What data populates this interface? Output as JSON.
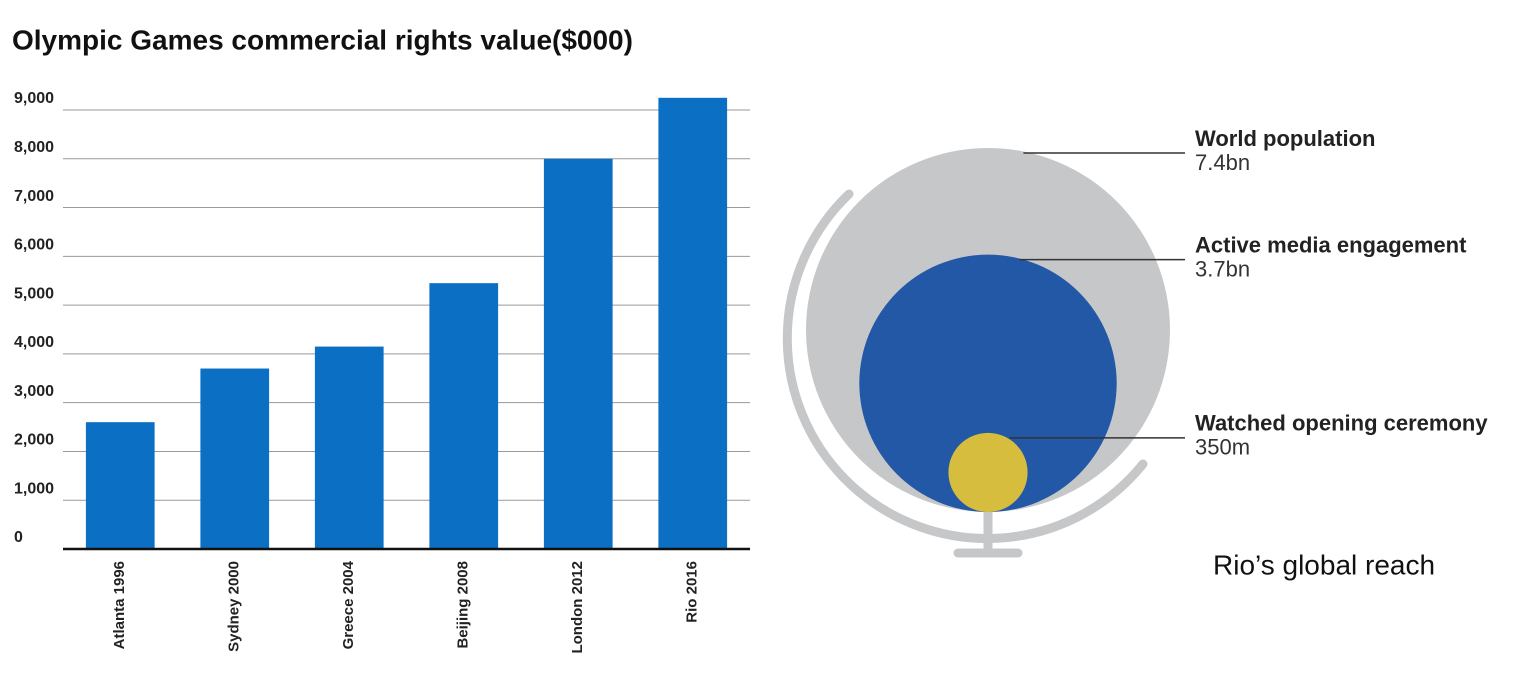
{
  "chart_data": [
    {
      "type": "bar",
      "title": "Olympic Games commercial rights value($000)",
      "categories": [
        "Atlanta 1996",
        "Sydney 2000",
        "Greece 2004",
        "Beijing 2008",
        "London 2012",
        "Rio 2016"
      ],
      "values": [
        2600,
        3700,
        4150,
        5450,
        8000,
        9250
      ],
      "color": "#0b6fc3",
      "ylim": [
        0,
        9000
      ],
      "yticks": [
        0,
        {
          "value": 1000,
          "label": "1,000"
        },
        {
          "value": 2000,
          "label": "2,000"
        },
        {
          "value": 3000,
          "label": "3,000"
        },
        {
          "value": 4000,
          "label": "4,000"
        },
        {
          "value": 5000,
          "label": "5,000"
        },
        {
          "value": 6000,
          "label": "6,000"
        },
        {
          "value": 7000,
          "label": "7,000"
        },
        {
          "value": 8000,
          "label": "8,000"
        },
        {
          "value": 9000,
          "label": "9,000"
        }
      ],
      "grid": true
    },
    {
      "type": "nested-circles",
      "title": "Rio’s global reach",
      "categories": [
        "World population",
        "Active media engagement",
        "Watched opening ceremony"
      ],
      "values": [
        7.4,
        3.7,
        0.35
      ],
      "value_labels": [
        "7.4bn",
        "3.7bn",
        "350m"
      ],
      "colors": [
        "#c6c7c9",
        "#2358a6",
        "#d6bd3d"
      ]
    }
  ]
}
